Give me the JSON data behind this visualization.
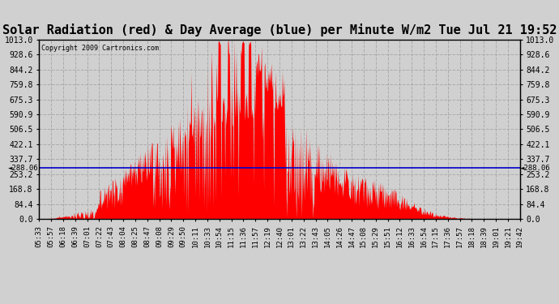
{
  "title": "Solar Radiation (red) & Day Average (blue) per Minute W/m2 Tue Jul 21 19:52",
  "copyright_text": "Copyright 2009 Cartronics.com",
  "y_min": 0.0,
  "y_max": 1013.0,
  "y_ticks": [
    0.0,
    84.4,
    168.8,
    253.2,
    337.7,
    422.1,
    506.5,
    590.9,
    675.3,
    759.8,
    844.2,
    928.6,
    1013.0
  ],
  "y_tick_labels": [
    "0.0",
    "84.4",
    "168.8",
    "253.2",
    "337.7",
    "422.1",
    "506.5",
    "590.9",
    "675.3",
    "759.8",
    "844.2",
    "928.6",
    "1013.0"
  ],
  "day_average": 288.06,
  "background_color": "#d0d0d0",
  "plot_bg_color": "#d0d0d0",
  "fill_color": "#ff0000",
  "line_color": "#0000cc",
  "grid_color": "#aaaaaa",
  "title_fontsize": 11,
  "x_label_fontsize": 6.5,
  "y_label_fontsize": 7,
  "x_tick_rotation": 90,
  "figwidth": 6.9,
  "figheight": 3.75,
  "dpi": 100,
  "x_tick_labels": [
    "05:33",
    "05:57",
    "06:18",
    "06:39",
    "07:01",
    "07:22",
    "07:43",
    "08:04",
    "08:25",
    "08:47",
    "09:08",
    "09:29",
    "09:50",
    "10:11",
    "10:33",
    "10:54",
    "11:15",
    "11:36",
    "11:57",
    "12:19",
    "12:40",
    "13:01",
    "13:22",
    "13:43",
    "14:05",
    "14:26",
    "14:47",
    "15:08",
    "15:29",
    "15:51",
    "16:12",
    "16:33",
    "16:54",
    "17:15",
    "17:36",
    "17:57",
    "18:18",
    "18:39",
    "19:01",
    "19:21",
    "19:42"
  ]
}
